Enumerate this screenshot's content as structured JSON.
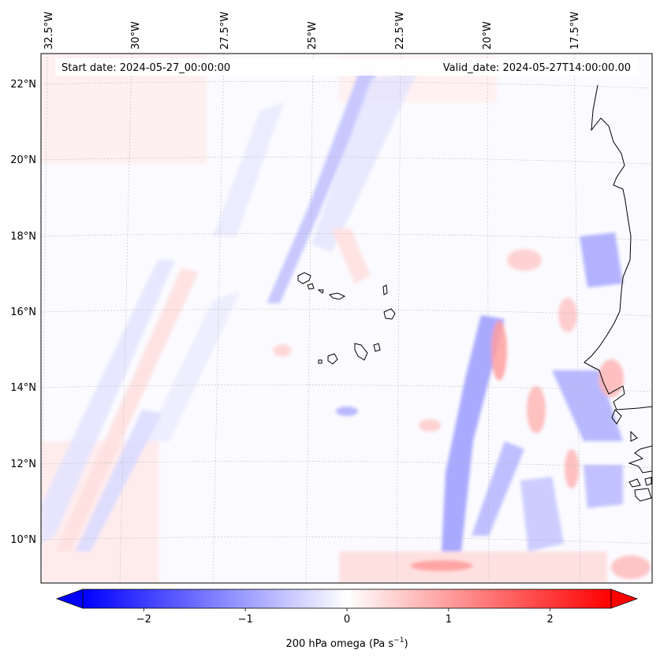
{
  "map": {
    "start_label": "Start date: 2024-05-27_00:00:00",
    "valid_label": "Valid_date: 2024-05-27T14:00:00.00",
    "lon_labels": [
      "32.5°W",
      "30°W",
      "27.5°W",
      "25°W",
      "22.5°W",
      "20°W",
      "17.5°W"
    ],
    "lat_labels": [
      "22°N",
      "20°N",
      "18°N",
      "16°N",
      "14°N",
      "12°N",
      "10°N"
    ],
    "field": "200 hPa omega",
    "colors": {
      "negative": "#0000ff",
      "positive": "#ff0000",
      "neutral": "#ffffff",
      "coastline": "#000000",
      "grid": "#b0b0b0"
    }
  },
  "colorbar": {
    "ticks": [
      "−2",
      "−1",
      "0",
      "1",
      "2"
    ],
    "tick_values": [
      -2,
      -1,
      0,
      1,
      2
    ],
    "range": [
      -2.6,
      2.6
    ],
    "label_main": "200 hPa omega (Pa s",
    "label_sup": "−1",
    "label_end": ")"
  }
}
